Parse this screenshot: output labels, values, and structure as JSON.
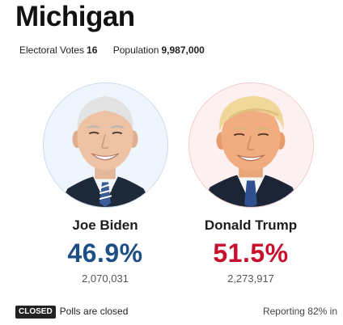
{
  "state": {
    "name": "Michigan"
  },
  "meta": {
    "electoral_votes_label": "Electoral Votes",
    "electoral_votes_value": "16",
    "population_label": "Population",
    "population_value": "9,987,000"
  },
  "candidates": [
    {
      "name": "Joe Biden",
      "percent": "46.9%",
      "votes": "2,070,031",
      "color": "#1d4f86",
      "ring_color": "#c8d9ec",
      "bg_color": "#eef5fc"
    },
    {
      "name": "Donald Trump",
      "percent": "51.5%",
      "votes": "2,273,917",
      "color": "#c8102e",
      "ring_color": "#efc7cc",
      "bg_color": "#fdf0f1"
    }
  ],
  "status": {
    "badge": "CLOSED",
    "text": "Polls are closed",
    "reporting": "Reporting 82% in"
  }
}
